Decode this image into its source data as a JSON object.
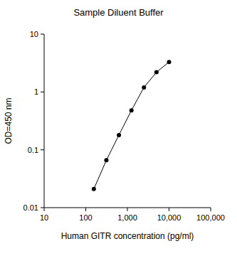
{
  "chart_data": {
    "type": "line",
    "title": "Sample Diluent Buffer",
    "x_label": "Human GITR concentration (pg/ml)",
    "y_label": "OD=450 nm",
    "x": [
      156.25,
      312.5,
      625,
      1250,
      2500,
      5000,
      10000
    ],
    "values": [
      0.021,
      0.066,
      0.18,
      0.48,
      1.2,
      2.2,
      3.3
    ],
    "color": "#000000",
    "marker": "circle",
    "log": true,
    "xlim": [
      10,
      100000
    ],
    "xticks": [
      10,
      100,
      {
        "value": 1000,
        "label": "1,000"
      },
      {
        "value": 10000,
        "label": "10,000"
      },
      {
        "value": 100000,
        "label": "100,000"
      }
    ],
    "ylim": [
      0.01,
      10
    ],
    "yticks": [
      0.01,
      0.1,
      1,
      10
    ]
  }
}
